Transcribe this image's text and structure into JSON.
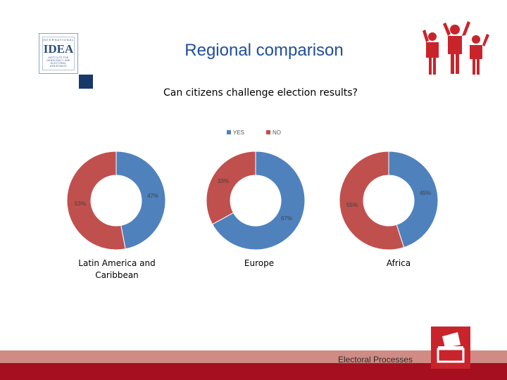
{
  "header": {
    "title": "Regional comparison",
    "subtitle": "Can citizens challenge election results?"
  },
  "logo": {
    "small_text": "INTERNATIONAL",
    "big_text": "IDEA",
    "lines": [
      "INSTITUTE FOR",
      "DEMOCRACY AND",
      "ELECTORAL",
      "ASSISTANCE"
    ]
  },
  "footer": {
    "label": "Electoral Processes"
  },
  "colors": {
    "title": "#1f4e9c",
    "yes": "#4f81bd",
    "no": "#c0504d",
    "footer_dark": "#a50f1f",
    "footer_light": "#cf8b84",
    "icon_red": "#c9242c"
  },
  "icons": [
    "people-icon",
    "ballot-box-icon"
  ],
  "chart_data": {
    "type": "pie",
    "variant": "donut",
    "legend": {
      "position": "top",
      "entries": [
        "YES",
        "NO"
      ]
    },
    "series_names": [
      "YES",
      "NO"
    ],
    "charts": [
      {
        "category": "Latin America and Caribbean",
        "values": [
          47,
          53
        ],
        "labels": [
          "47%",
          "53%"
        ]
      },
      {
        "category": "Europe",
        "values": [
          67,
          33
        ],
        "labels": [
          "67%",
          "33%"
        ]
      },
      {
        "category": "Africa",
        "values": [
          45,
          55
        ],
        "labels": [
          "45%",
          "55%"
        ]
      }
    ]
  }
}
